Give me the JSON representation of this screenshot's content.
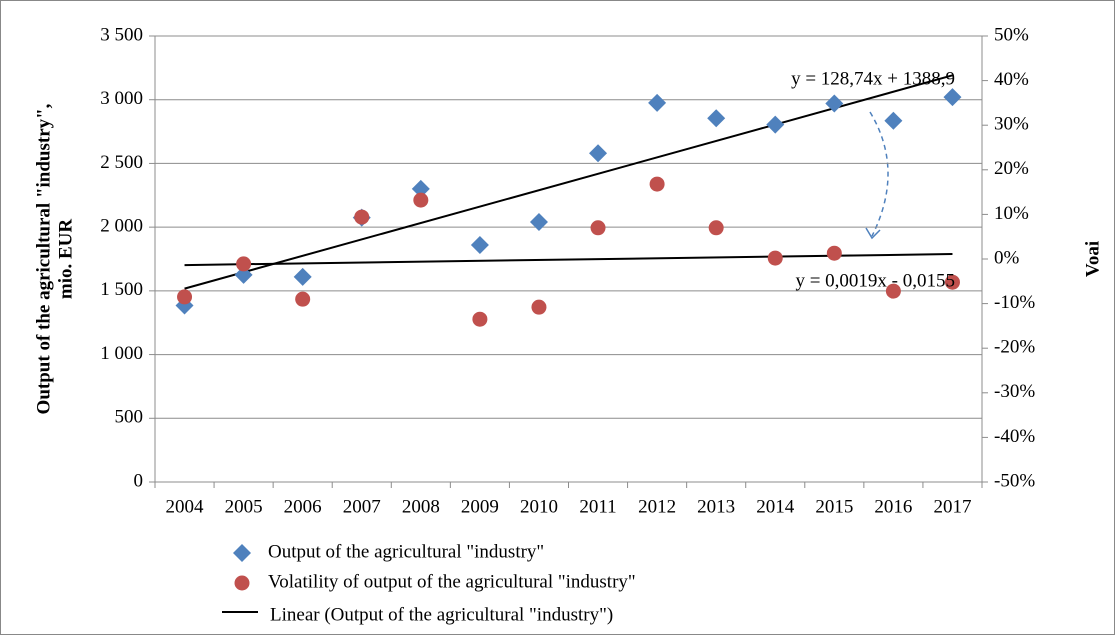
{
  "chart_data": {
    "type": "scatter",
    "y_label": [
      "Output of the agricultural \"industry\",",
      "mio. EUR"
    ],
    "y2_label": "Voai",
    "categories": [
      "2004",
      "2005",
      "2006",
      "2007",
      "2008",
      "2009",
      "2010",
      "2011",
      "2012",
      "2013",
      "2014",
      "2015",
      "2016",
      "2017"
    ],
    "series": [
      {
        "name": "Output of the agricultural \"industry\"",
        "color": "#4f81bd",
        "marker": "diamond",
        "axis": "y",
        "values": [
          1385,
          1625,
          1610,
          2075,
          2300,
          1860,
          2040,
          2580,
          2975,
          2855,
          2805,
          2970,
          2835,
          3020
        ]
      },
      {
        "name": "Volatility of output of the agricultural \"industry\"",
        "color": "#c0504d",
        "marker": "circle",
        "axis": "y2",
        "values": [
          -8.5,
          -1.1,
          -9,
          9.4,
          13.2,
          -13.5,
          -10.8,
          7,
          16.8,
          7,
          0.2,
          1.3,
          -7.2,
          -5.2
        ]
      }
    ],
    "trendlines": [
      {
        "name": "Linear (Output of the agricultural \"industry\")",
        "equation": "y = 128,74x + 1388,9",
        "slope": 128.74,
        "intercept": 1388.9,
        "axis": "y",
        "color": "#000000"
      },
      {
        "equation": "y = 0,0019x - 0,0155",
        "slope": 0.19,
        "intercept": -1.55,
        "axis": "y2",
        "color": "#000000"
      }
    ],
    "ylim": [
      0,
      3500
    ],
    "yticks": [
      0,
      500,
      {
        "value": 1000,
        "label": "1 000"
      },
      {
        "value": 1500,
        "label": "1 500"
      },
      {
        "value": 2000,
        "label": "2 000"
      },
      {
        "value": 2500,
        "label": "2 500"
      },
      {
        "value": 3000,
        "label": "3 000"
      },
      {
        "value": 3500,
        "label": "3 500"
      }
    ],
    "y2lim": [
      -50,
      50
    ],
    "y2ticks": [
      {
        "value": -50,
        "label": "-50%"
      },
      {
        "value": -40,
        "label": "-40%"
      },
      {
        "value": -30,
        "label": "-30%"
      },
      {
        "value": -20,
        "label": "-20%"
      },
      {
        "value": -10,
        "label": "-10%"
      },
      {
        "value": 0,
        "label": "0%"
      },
      {
        "value": 10,
        "label": "10%"
      },
      {
        "value": 20,
        "label": "20%"
      },
      {
        "value": 30,
        "label": "30%"
      },
      {
        "value": 40,
        "label": "40%"
      },
      {
        "value": 50,
        "label": "50%"
      }
    ],
    "grid": true
  }
}
